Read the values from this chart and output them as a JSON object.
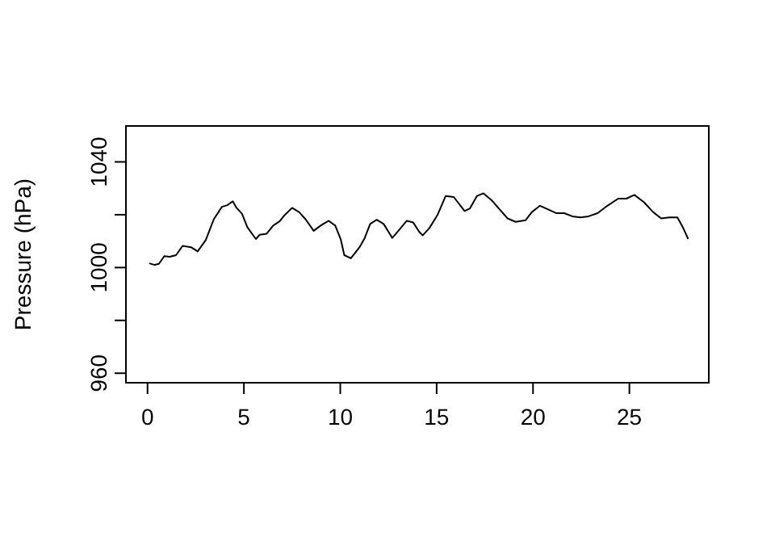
{
  "chart_data": {
    "type": "line",
    "ylabel": "Pressure (hPa)",
    "xlim": [
      -1.12,
      29.12
    ],
    "xticks": [
      0,
      5,
      10,
      15,
      20,
      25
    ],
    "ylim": [
      956.4,
      1053.6
    ],
    "yticks": [
      960,
      {
        "value": 980,
        "label": null
      },
      1000,
      {
        "value": 1020,
        "label": null
      },
      1040
    ],
    "grid": false,
    "marker": "none",
    "line_style": "solid",
    "series": [
      {
        "color": "#000000",
        "x": [
          0.09,
          0.37,
          0.59,
          0.87,
          1.15,
          1.48,
          1.82,
          2.26,
          2.6,
          3.02,
          3.44,
          3.86,
          4.14,
          4.42,
          4.62,
          4.9,
          5.18,
          5.62,
          5.82,
          6.18,
          6.52,
          6.85,
          7.13,
          7.5,
          7.86,
          8.2,
          8.62,
          8.98,
          9.4,
          9.74,
          10.02,
          10.21,
          10.55,
          11.0,
          11.27,
          11.55,
          11.89,
          12.25,
          12.7,
          13.05,
          13.45,
          13.78,
          14.1,
          14.28,
          14.62,
          15.05,
          15.47,
          15.89,
          16.45,
          16.73,
          17.09,
          17.43,
          17.85,
          18.27,
          18.68,
          19.1,
          19.61,
          19.94,
          20.36,
          20.78,
          21.2,
          21.62,
          22.04,
          22.46,
          22.88,
          23.35,
          23.86,
          24.42,
          24.84,
          25.26,
          25.76,
          26.23,
          26.65,
          27.07,
          27.49,
          27.77,
          28.05
        ],
        "values": [
          1001.6,
          1001.0,
          1001.4,
          1004.3,
          1004.1,
          1004.7,
          1008.2,
          1007.7,
          1006.1,
          1010.4,
          1018.3,
          1023.0,
          1023.6,
          1025.1,
          1022.6,
          1020.4,
          1015.3,
          1010.8,
          1012.4,
          1012.8,
          1015.9,
          1017.5,
          1020.0,
          1022.6,
          1021.0,
          1018.3,
          1013.9,
          1015.9,
          1017.7,
          1015.9,
          1010.8,
          1004.7,
          1003.5,
          1007.7,
          1011.2,
          1016.5,
          1018.1,
          1016.5,
          1011.2,
          1014.2,
          1017.7,
          1017.1,
          1013.5,
          1012.2,
          1014.9,
          1020.0,
          1027.1,
          1026.7,
          1021.4,
          1022.4,
          1027.1,
          1028.1,
          1025.5,
          1022.0,
          1018.6,
          1017.3,
          1017.9,
          1021.0,
          1023.4,
          1022.0,
          1020.6,
          1020.6,
          1019.4,
          1019.0,
          1019.4,
          1020.6,
          1023.4,
          1026.1,
          1026.1,
          1027.5,
          1024.7,
          1021.0,
          1018.6,
          1019.0,
          1019.0,
          1015.3,
          1010.8
        ]
      }
    ]
  }
}
